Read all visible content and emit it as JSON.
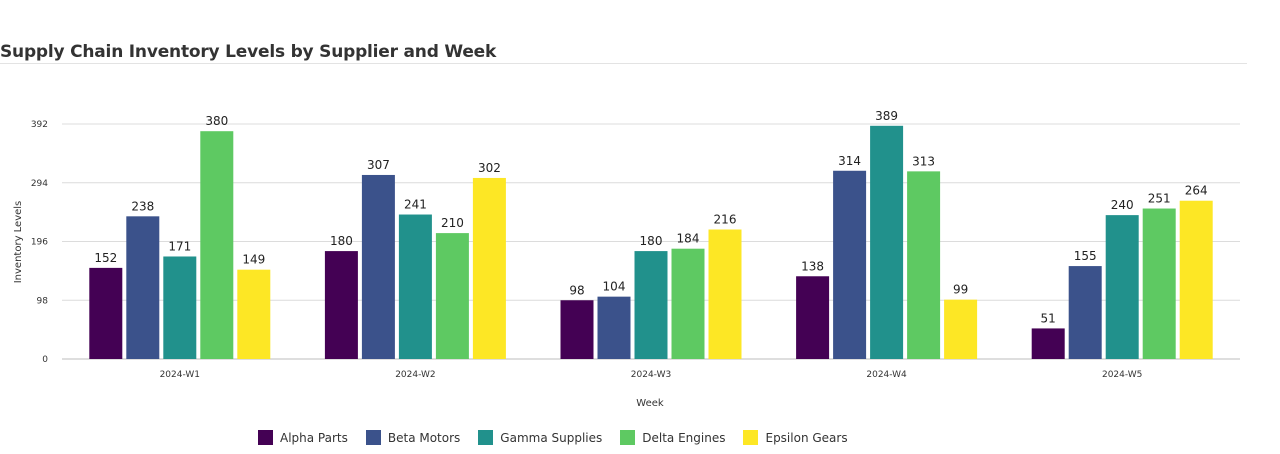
{
  "chart_data": {
    "type": "bar",
    "title": "Supply Chain Inventory Levels by Supplier and Week",
    "xlabel": "Week",
    "ylabel": "Inventory Levels",
    "categories": [
      "2024-W1",
      "2024-W2",
      "2024-W3",
      "2024-W4",
      "2024-W5"
    ],
    "yticks": [
      0,
      98,
      196,
      294,
      392
    ],
    "ylim": [
      0,
      392
    ],
    "grid": true,
    "legend_position": "bottom",
    "series": [
      {
        "name": "Alpha Parts",
        "color": "#440154",
        "values": [
          152,
          180,
          98,
          138,
          51
        ]
      },
      {
        "name": "Beta Motors",
        "color": "#3b528b",
        "values": [
          238,
          307,
          104,
          314,
          155
        ]
      },
      {
        "name": "Gamma Supplies",
        "color": "#21918c",
        "values": [
          171,
          241,
          180,
          389,
          240
        ]
      },
      {
        "name": "Delta Engines",
        "color": "#5ec962",
        "values": [
          380,
          210,
          184,
          313,
          251
        ]
      },
      {
        "name": "Epsilon Gears",
        "color": "#fde725",
        "values": [
          149,
          302,
          216,
          99,
          264
        ]
      }
    ]
  }
}
